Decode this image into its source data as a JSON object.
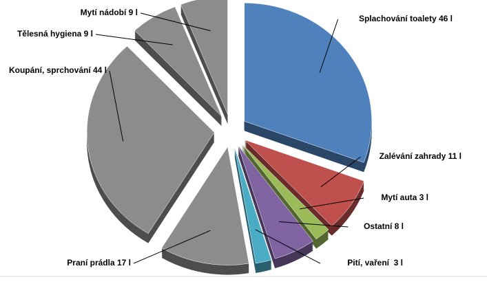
{
  "chart_data": {
    "type": "pie",
    "categories": [
      "Splachování toalety 46 l",
      "Zalévání zahrady 11 l",
      "Mytí auta 3 l",
      "Ostatní 8 l",
      "Pití, vaření  3 l",
      "Praní prádla 17 l",
      "Koupání, sprchování 44 l",
      "Tělesná hygiena 9 l",
      "Mytí nádobí 9 l"
    ],
    "values": [
      46,
      11,
      3,
      8,
      3,
      17,
      44,
      9,
      9
    ],
    "colors": [
      "#4f81bd",
      "#c0504d",
      "#9bbb59",
      "#8064a2",
      "#4bacc6",
      "#8c8c8c",
      "#8c8c8c",
      "#8c8c8c",
      "#8c8c8c"
    ]
  }
}
